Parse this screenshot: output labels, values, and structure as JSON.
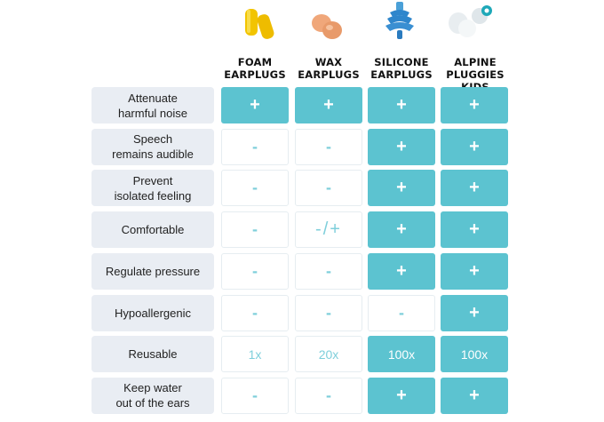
{
  "columns": [
    {
      "line1": "FOAM",
      "line2": "EARPLUGS"
    },
    {
      "line1": "WAX",
      "line2": "EARPLUGS"
    },
    {
      "line1": "SILICONE",
      "line2": "EARPLUGS"
    },
    {
      "line1": "ALPINE",
      "line2": "PLUGGIES KIDS"
    }
  ],
  "rows": [
    {
      "label": [
        "Attenuate",
        "harmful noise"
      ],
      "cells": [
        "+",
        "+",
        "+",
        "+"
      ],
      "highlight": [
        true,
        true,
        true,
        true
      ]
    },
    {
      "label": [
        "Speech",
        "remains audible"
      ],
      "cells": [
        "-",
        "-",
        "+",
        "+"
      ],
      "highlight": [
        false,
        false,
        true,
        true
      ]
    },
    {
      "label": [
        "Prevent",
        "isolated feeling"
      ],
      "cells": [
        "-",
        "-",
        "+",
        "+"
      ],
      "highlight": [
        false,
        false,
        true,
        true
      ]
    },
    {
      "label": [
        "Comfortable"
      ],
      "cells": [
        "-",
        "-/+",
        "+",
        "+"
      ],
      "highlight": [
        false,
        false,
        true,
        true
      ]
    },
    {
      "label": [
        "Regulate pressure"
      ],
      "cells": [
        "-",
        "-",
        "+",
        "+"
      ],
      "highlight": [
        false,
        false,
        true,
        true
      ]
    },
    {
      "label": [
        "Hypoallergenic"
      ],
      "cells": [
        "-",
        "-",
        "-",
        "+"
      ],
      "highlight": [
        false,
        false,
        false,
        true
      ]
    },
    {
      "label": [
        "Reusable"
      ],
      "cells": [
        "1x",
        "20x",
        "100x",
        "100x"
      ],
      "highlight": [
        false,
        false,
        true,
        true
      ]
    },
    {
      "label": [
        "Keep water",
        "out of the ears"
      ],
      "cells": [
        "-",
        "-",
        "+",
        "+"
      ],
      "highlight": [
        false,
        false,
        true,
        true
      ]
    }
  ],
  "colors": {
    "accent": "#5cc3d0",
    "label_bg": "#e9edf3",
    "dim_text": "#7fcfdb"
  },
  "icons": [
    "foam-earplug-icon",
    "wax-earplug-icon",
    "silicone-earplug-icon",
    "alpine-earplug-icon"
  ]
}
